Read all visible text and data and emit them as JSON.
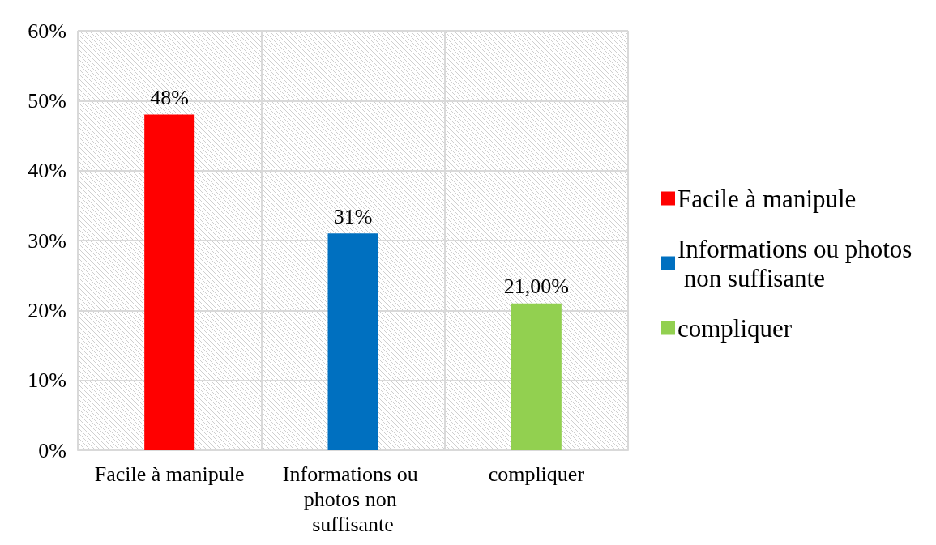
{
  "chart_data": {
    "type": "bar",
    "categories": [
      "Facile à manipule",
      "Informations ou photos non suffisante",
      "compliquer"
    ],
    "series": [
      {
        "name": "Facile à manipule",
        "color": "#ff0000",
        "values": [
          48,
          null,
          null
        ],
        "value_labels": [
          "48%",
          null,
          null
        ]
      },
      {
        "name": "Informations ou photos non suffisante",
        "color": "#0070c0",
        "values": [
          null,
          31,
          null
        ],
        "value_labels": [
          null,
          "31%",
          null
        ]
      },
      {
        "name": "compliquer",
        "color": "#92d050",
        "values": [
          null,
          null,
          21
        ],
        "value_labels": [
          null,
          null,
          "21,00%"
        ]
      }
    ],
    "ylim": [
      0,
      60
    ],
    "yticks": [
      {
        "value": 0,
        "label": "0%"
      },
      {
        "value": 10,
        "label": "10%"
      },
      {
        "value": 20,
        "label": "20%"
      },
      {
        "value": 30,
        "label": "30%"
      },
      {
        "value": 40,
        "label": "40%"
      },
      {
        "value": 50,
        "label": "50%"
      },
      {
        "value": 60,
        "label": "60%"
      }
    ],
    "grid": true,
    "legend": "right"
  }
}
